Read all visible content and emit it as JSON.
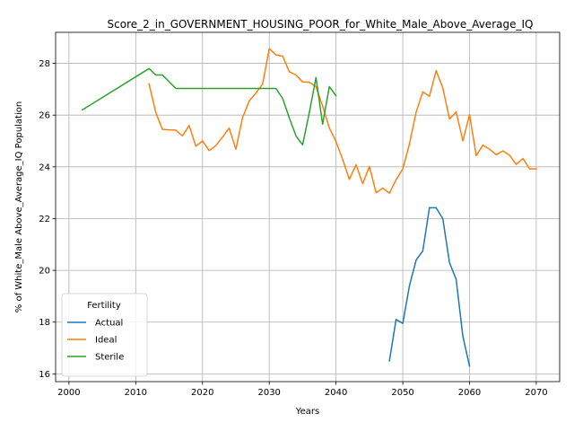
{
  "chart_data": {
    "type": "line",
    "title": "Score_2_in_GOVERNMENT_HOUSING_POOR_for_White_Male_Above_Average_IQ",
    "xlabel": "Years",
    "ylabel": "% of White_Male Above_Average_IQ Population",
    "xlim": [
      1998,
      2073.5
    ],
    "ylim": [
      15.7,
      29.2
    ],
    "xticks": [
      2000,
      2010,
      2020,
      2030,
      2040,
      2050,
      2060,
      2070
    ],
    "yticks": [
      16,
      18,
      20,
      22,
      24,
      26,
      28
    ],
    "grid": true,
    "legend": {
      "title": "Fertility",
      "placement": "lower-left"
    },
    "series": [
      {
        "name": "Actual",
        "color": "#1f77b4",
        "x": [
          2048,
          2049,
          2050,
          2051,
          2052,
          2053,
          2054,
          2055,
          2056,
          2057,
          2058,
          2059,
          2060
        ],
        "y": [
          16.5,
          18.1,
          17.95,
          19.4,
          20.4,
          20.75,
          22.42,
          22.42,
          22.0,
          20.3,
          19.65,
          17.45,
          16.3
        ]
      },
      {
        "name": "Ideal",
        "color": "#ff7f0e",
        "x": [
          2012,
          2013,
          2014,
          2015,
          2016,
          2017,
          2018,
          2019,
          2020,
          2021,
          2022,
          2023,
          2024,
          2025,
          2026,
          2027,
          2028,
          2029,
          2030,
          2031,
          2032,
          2033,
          2034,
          2035,
          2036,
          2037,
          2038,
          2039,
          2040,
          2041,
          2042,
          2043,
          2044,
          2045,
          2046,
          2047,
          2048,
          2049,
          2050,
          2051,
          2052,
          2053,
          2054,
          2055,
          2056,
          2057,
          2058,
          2059,
          2060,
          2061,
          2062,
          2063,
          2064,
          2065,
          2066,
          2067,
          2068,
          2069,
          2070
        ],
        "y": [
          27.2,
          26.1,
          25.45,
          25.43,
          25.42,
          25.2,
          25.6,
          24.8,
          25.0,
          24.63,
          24.82,
          25.15,
          25.5,
          24.68,
          25.9,
          26.55,
          26.85,
          27.2,
          28.57,
          28.33,
          28.28,
          27.68,
          27.55,
          27.28,
          27.27,
          27.1,
          26.35,
          25.5,
          24.98,
          24.28,
          23.52,
          24.08,
          23.35,
          24.02,
          23.0,
          23.18,
          22.98,
          23.5,
          23.92,
          24.88,
          26.12,
          26.9,
          26.73,
          27.72,
          27.05,
          25.85,
          26.12,
          25.0,
          26.02,
          24.43,
          24.84,
          24.68,
          24.47,
          24.62,
          24.45,
          24.1,
          24.32,
          23.92,
          23.92
        ]
      },
      {
        "name": "Sterile",
        "color": "#2ca02c",
        "x": [
          2002,
          2012,
          2013,
          2014,
          2016,
          2031,
          2032,
          2033,
          2034,
          2035,
          2036,
          2037,
          2038,
          2039,
          2040
        ],
        "y": [
          26.2,
          27.8,
          27.55,
          27.55,
          27.03,
          27.03,
          26.65,
          25.9,
          25.2,
          24.85,
          26.1,
          27.45,
          25.65,
          27.1,
          26.75
        ]
      }
    ]
  }
}
